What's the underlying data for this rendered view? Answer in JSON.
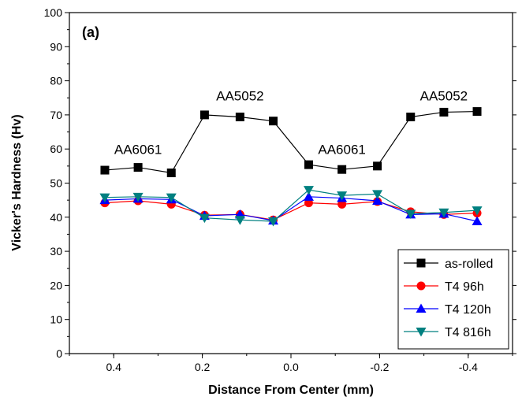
{
  "chart_data": {
    "type": "line",
    "panel_label": "(a)",
    "xlabel": "Distance From Center (mm)",
    "ylabel": "Vicker's Hardness (Hv)",
    "xlim": [
      0.5,
      -0.5
    ],
    "ylim": [
      0,
      100
    ],
    "x_reversed": true,
    "x_ticks": [
      0.4,
      0.2,
      0.0,
      -0.2,
      -0.4
    ],
    "x_tick_labels": [
      "0.4",
      "0.2",
      "0.0",
      "-0.2",
      "-0.4"
    ],
    "y_ticks": [
      0,
      10,
      20,
      30,
      40,
      50,
      60,
      70,
      80,
      90,
      100
    ],
    "y_tick_labels": [
      "0",
      "10",
      "20",
      "30",
      "40",
      "50",
      "60",
      "70",
      "80",
      "90",
      "100"
    ],
    "x": [
      0.42,
      0.345,
      0.27,
      0.195,
      0.115,
      0.04,
      -0.04,
      -0.115,
      -0.195,
      -0.27,
      -0.345,
      -0.42
    ],
    "series": [
      {
        "name": "as-rolled",
        "color": "#000000",
        "marker": "square",
        "values": [
          53.8,
          54.6,
          53.0,
          70.0,
          69.4,
          68.2,
          55.4,
          54.0,
          55.0,
          69.4,
          70.8,
          71.0
        ]
      },
      {
        "name": "T4 96h",
        "color": "#ff0000",
        "marker": "circle",
        "values": [
          44.2,
          44.8,
          43.8,
          40.6,
          40.8,
          39.2,
          44.2,
          43.8,
          44.6,
          41.6,
          40.8,
          41.2
        ]
      },
      {
        "name": "T4 120h",
        "color": "#0000ff",
        "marker": "triangle-up",
        "values": [
          45.0,
          45.4,
          45.2,
          40.4,
          40.8,
          39.0,
          46.0,
          45.6,
          44.8,
          40.8,
          41.0,
          38.8
        ]
      },
      {
        "name": "T4 816h",
        "color": "#008080",
        "marker": "triangle-down",
        "values": [
          45.8,
          46.0,
          45.8,
          39.8,
          39.2,
          38.8,
          48.0,
          46.4,
          46.8,
          41.0,
          41.4,
          42.0
        ]
      }
    ],
    "annotations": [
      {
        "text": "AA6061",
        "x": 0.345,
        "y": 58.5
      },
      {
        "text": "AA5052",
        "x": 0.115,
        "y": 74.2
      },
      {
        "text": "AA6061",
        "x": -0.115,
        "y": 58.5
      },
      {
        "text": "AA5052",
        "x": -0.345,
        "y": 74.2
      }
    ],
    "legend_position": "bottom-right",
    "grid": false
  }
}
